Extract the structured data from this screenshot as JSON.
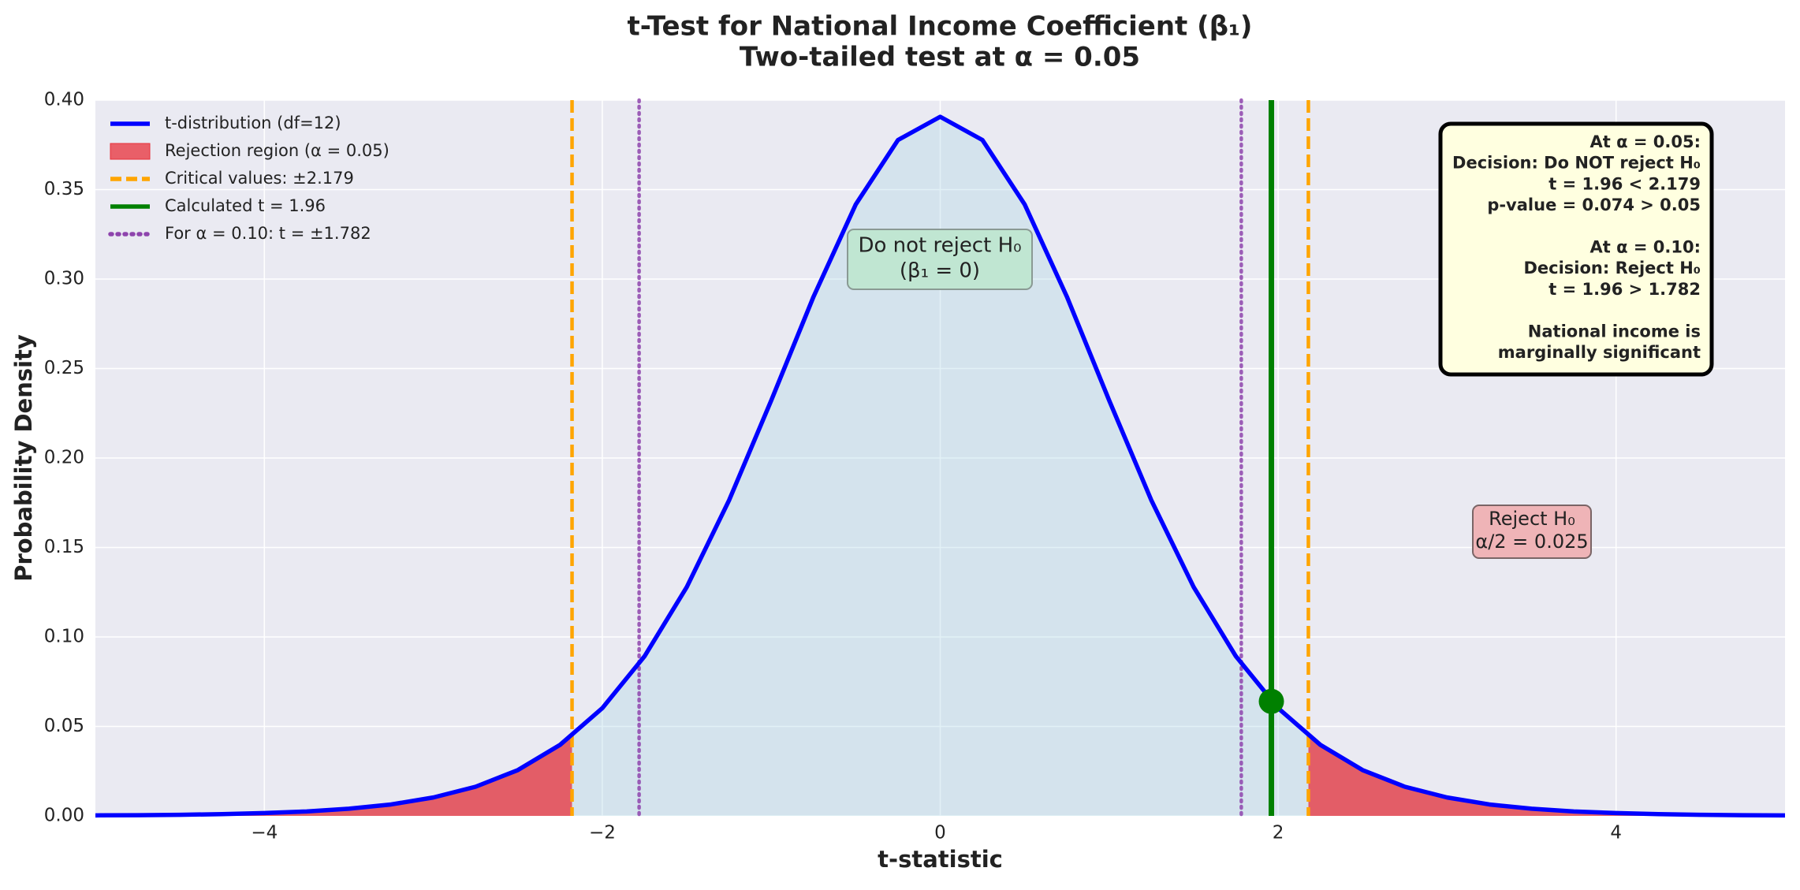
{
  "chart_data": {
    "type": "line",
    "title_lines": [
      "t-Test for National Income Coefficient (β₁)",
      "Two-tailed test at α = 0.05"
    ],
    "x_label": "t-statistic",
    "y_label": "Probability Density",
    "x": [
      -5,
      -4.75,
      -4.5,
      -4.25,
      -4,
      -3.75,
      -3.5,
      -3.25,
      -3,
      -2.75,
      -2.5,
      -2.25,
      -2,
      -1.75,
      -1.5,
      -1.25,
      -1,
      -0.75,
      -0.5,
      -0.25,
      0,
      0.25,
      0.5,
      0.75,
      1,
      1.25,
      1.5,
      1.75,
      2,
      2.25,
      2.5,
      2.75,
      3,
      3.25,
      3.5,
      3.75,
      4,
      4.25,
      4.5,
      4.75,
      5
    ],
    "series": [
      {
        "name": "t-distribution (df=12)",
        "color": "#0000ff",
        "values": [
          0.0003,
          0.0004,
          0.0006,
          0.001,
          0.0016,
          0.0025,
          0.004,
          0.0064,
          0.0103,
          0.0163,
          0.0256,
          0.0397,
          0.0602,
          0.0892,
          0.1279,
          0.1763,
          0.2322,
          0.2901,
          0.3417,
          0.3777,
          0.3907,
          0.3777,
          0.3417,
          0.2901,
          0.2322,
          0.1763,
          0.1279,
          0.0892,
          0.0602,
          0.0397,
          0.0256,
          0.0163,
          0.0103,
          0.0064,
          0.004,
          0.0025,
          0.0016,
          0.001,
          0.0006,
          0.0004,
          0.0003
        ]
      }
    ],
    "rejection_region": {
      "name": "Rejection region (α = 0.05)",
      "color": "#e8303a"
    },
    "critical_values": {
      "name": "Critical values: ±2.179",
      "color": "#ffa500",
      "values": [
        -2.179,
        2.179
      ]
    },
    "calculated_t": {
      "name": "Calculated t = 1.96",
      "color": "#008000",
      "x": 1.96,
      "y": 0.064
    },
    "alpha_010_values": {
      "name": "For α = 0.10: t = ±1.782",
      "color": "#8e44ad",
      "values": [
        -1.782,
        1.782
      ]
    },
    "annotations": {
      "do_not_reject": [
        "Do not reject H₀",
        "(β₁ = 0)"
      ],
      "reject": [
        "Reject H₀",
        "α/2 = 0.025"
      ],
      "decision": [
        [
          "At α = 0.05:",
          "Decision: Do NOT reject H₀",
          "t = 1.96 < 2.179",
          "p-value = 0.074 > 0.05"
        ],
        [
          "At α = 0.10:",
          "Decision: Reject H₀",
          "t = 1.96 > 1.782"
        ],
        [
          "National income is",
          "marginally significant"
        ]
      ]
    },
    "xlim": [
      -5,
      5
    ],
    "xticks": [
      {
        "value": -4,
        "label": "−4"
      },
      {
        "value": -2,
        "label": "−2"
      },
      0,
      2,
      4
    ],
    "ylim": [
      0,
      0.4
    ],
    "yticks": [
      {
        "value": 0,
        "label": "0.00"
      },
      {
        "value": 0.05,
        "label": "0.05"
      },
      {
        "value": 0.1,
        "label": "0.10"
      },
      {
        "value": 0.15,
        "label": "0.15"
      },
      {
        "value": 0.2,
        "label": "0.20"
      },
      {
        "value": 0.25,
        "label": "0.25"
      },
      {
        "value": 0.3,
        "label": "0.30"
      },
      {
        "value": 0.35,
        "label": "0.35"
      },
      {
        "value": 0.4,
        "label": "0.40"
      }
    ],
    "grid": true
  }
}
